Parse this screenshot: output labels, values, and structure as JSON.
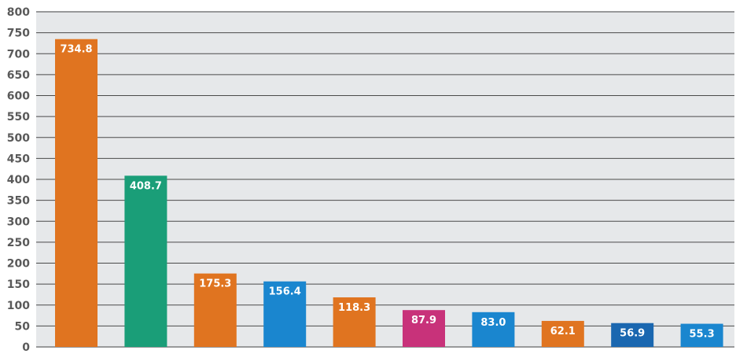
{
  "chart_data": {
    "type": "bar",
    "categories": [
      "",
      "",
      "",
      "",
      "",
      "",
      "",
      "",
      "",
      ""
    ],
    "values": [
      734.8,
      408.7,
      175.3,
      156.4,
      118.3,
      87.9,
      83.0,
      62.1,
      56.9,
      55.3
    ],
    "value_labels": [
      "734.8",
      "408.7",
      "175.3",
      "156.4",
      "118.3",
      "87.9",
      "83.0",
      "62.1",
      "56.9",
      "55.3"
    ],
    "bar_colors": [
      "#e07420",
      "#1a9e78",
      "#e07420",
      "#1a86cf",
      "#e07420",
      "#c8327a",
      "#1a86cf",
      "#e07420",
      "#1a67b0",
      "#1a86cf"
    ],
    "ylim": [
      0,
      800
    ],
    "yticks": [
      "0",
      "50",
      "100",
      "150",
      "200",
      "250",
      "300",
      "350",
      "400",
      "450",
      "500",
      "550",
      "600",
      "650",
      "700",
      "750",
      "800"
    ],
    "grid": true,
    "legend": "none",
    "title": "",
    "xlabel": "",
    "ylabel": "",
    "colors": {
      "plot_background": "#e6e8ea",
      "gridline": "#4a4a4a",
      "axis_text": "#5a5a5a",
      "data_label": "#ffffff"
    }
  }
}
